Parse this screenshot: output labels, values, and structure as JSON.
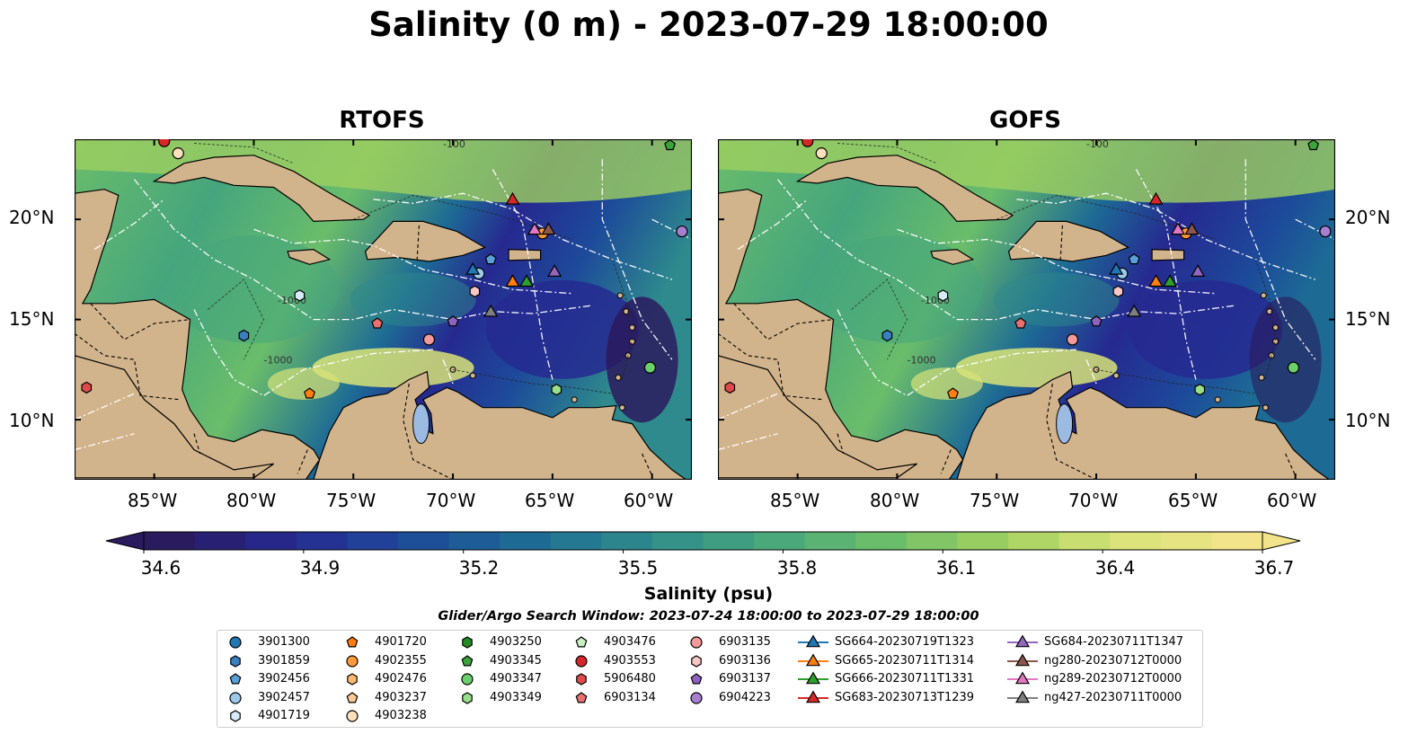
{
  "title": "Salinity (0 m) - 2023-07-29 18:00:00",
  "panels": [
    {
      "title": "RTOFS"
    },
    {
      "title": "GOFS"
    }
  ],
  "lat_ticks": [
    "20°N",
    "15°N",
    "10°N"
  ],
  "lon_ticks": [
    "85°W",
    "80°W",
    "75°W",
    "70°W",
    "65°W",
    "60°W"
  ],
  "isobath_labels": [
    "-100",
    "-1000"
  ],
  "colorbar": {
    "title": "Salinity (psu)",
    "ticks": [
      "34.6",
      "34.9",
      "35.2",
      "35.5",
      "35.8",
      "36.1",
      "36.4",
      "36.7"
    ],
    "min": 34.6,
    "max": 36.7,
    "colormap": [
      "#2a1a5e",
      "#262990",
      "#1d4a9a",
      "#1d6a95",
      "#2e8a8c",
      "#46a57e",
      "#6abd6a",
      "#9fd060",
      "#d8e378",
      "#f1e48a"
    ]
  },
  "search_window": "Glider/Argo Search Window: 2023-07-24 18:00:00 to 2023-07-29 18:00:00",
  "legend": {
    "columns": [
      [
        {
          "label": "3901300",
          "marker": "circle",
          "color": "#1f77b4"
        },
        {
          "label": "3901859",
          "marker": "hexagon",
          "color": "#3a7fbf"
        },
        {
          "label": "3902456",
          "marker": "pentagon",
          "color": "#5aa0d8"
        },
        {
          "label": "3902457",
          "marker": "circle",
          "color": "#9cc8ea"
        },
        {
          "label": "4901719",
          "marker": "hexagon",
          "color": "#d6eaf8"
        }
      ],
      [
        {
          "label": "4901720",
          "marker": "pentagon",
          "color": "#ff7f0e"
        },
        {
          "label": "4902355",
          "marker": "circle",
          "color": "#ff9a3a"
        },
        {
          "label": "4902476",
          "marker": "hexagon",
          "color": "#ffb870"
        },
        {
          "label": "4903237",
          "marker": "pentagon",
          "color": "#ffc997"
        },
        {
          "label": "4903238",
          "marker": "circle",
          "color": "#ffe0bd"
        }
      ],
      [
        {
          "label": "4903250",
          "marker": "hexagon",
          "color": "#238b23"
        },
        {
          "label": "4903345",
          "marker": "pentagon",
          "color": "#3ca23c"
        },
        {
          "label": "4903347",
          "marker": "circle",
          "color": "#6bd06b"
        },
        {
          "label": "4903349",
          "marker": "hexagon",
          "color": "#98df8a"
        },
        {
          "label": "",
          "marker": "",
          "color": ""
        }
      ],
      [
        {
          "label": "4903476",
          "marker": "pentagon",
          "color": "#c7f0c0"
        },
        {
          "label": "4903553",
          "marker": "circle",
          "color": "#d62728"
        },
        {
          "label": "5906480",
          "marker": "hexagon",
          "color": "#e04a4a"
        },
        {
          "label": "6903134",
          "marker": "pentagon",
          "color": "#ec6f6f"
        },
        {
          "label": "",
          "marker": "",
          "color": ""
        }
      ],
      [
        {
          "label": "6903135",
          "marker": "circle",
          "color": "#f29a9a"
        },
        {
          "label": "6903136",
          "marker": "hexagon",
          "color": "#f9c6c6"
        },
        {
          "label": "6903137",
          "marker": "pentagon",
          "color": "#8e63c0"
        },
        {
          "label": "6904223",
          "marker": "circle",
          "color": "#a77fd1"
        },
        {
          "label": "",
          "marker": "",
          "color": ""
        }
      ],
      [
        {
          "label": "SG664-20230719T1323",
          "marker": "triangle",
          "color": "#1f77b4"
        },
        {
          "label": "SG665-20230711T1314",
          "marker": "triangle",
          "color": "#ff7f0e"
        },
        {
          "label": "SG666-20230711T1331",
          "marker": "triangle",
          "color": "#2ca02c"
        },
        {
          "label": "SG683-20230713T1239",
          "marker": "triangle",
          "color": "#d62728"
        },
        {
          "label": "",
          "marker": "",
          "color": ""
        }
      ],
      [
        {
          "label": "SG684-20230711T1347",
          "marker": "triangle",
          "color": "#9467bd"
        },
        {
          "label": "ng280-20230712T0000",
          "marker": "triangle",
          "color": "#8c564b"
        },
        {
          "label": "ng289-20230712T0000",
          "marker": "triangle",
          "color": "#e377c2"
        },
        {
          "label": "ng427-20230711T0000",
          "marker": "triangle",
          "color": "#7f7f7f"
        },
        {
          "label": "",
          "marker": "",
          "color": ""
        }
      ]
    ]
  },
  "map_markers": [
    {
      "name": "4901720",
      "lon": -77.2,
      "lat": 11.3,
      "marker": "pentagon",
      "color": "#ff7f0e"
    },
    {
      "name": "3901859",
      "lon": -80.5,
      "lat": 14.2,
      "marker": "hexagon",
      "color": "#3a7fbf"
    },
    {
      "name": "4901719",
      "lon": -77.7,
      "lat": 16.2,
      "marker": "hexagon",
      "color": "#d6eaf8"
    },
    {
      "name": "6903134",
      "lon": -73.8,
      "lat": 14.8,
      "marker": "pentagon",
      "color": "#ec6f6f"
    },
    {
      "name": "6903135",
      "lon": -71.2,
      "lat": 14.0,
      "marker": "circle",
      "color": "#f29a9a"
    },
    {
      "name": "6903137",
      "lon": -70.0,
      "lat": 14.9,
      "marker": "pentagon",
      "color": "#8e63c0"
    },
    {
      "name": "6903136",
      "lon": -68.9,
      "lat": 16.4,
      "marker": "hexagon",
      "color": "#f9c6c6"
    },
    {
      "name": "3902457",
      "lon": -68.7,
      "lat": 17.3,
      "marker": "circle",
      "color": "#9cc8ea"
    },
    {
      "name": "3902456",
      "lon": -68.1,
      "lat": 18.0,
      "marker": "pentagon",
      "color": "#5aa0d8"
    },
    {
      "name": "4903349",
      "lon": -64.8,
      "lat": 11.5,
      "marker": "hexagon",
      "color": "#98df8a"
    },
    {
      "name": "4903347",
      "lon": -60.1,
      "lat": 12.6,
      "marker": "circle",
      "color": "#6bd06b"
    },
    {
      "name": "5906480",
      "lon": -88.4,
      "lat": 11.6,
      "marker": "hexagon",
      "color": "#e04a4a"
    },
    {
      "name": "6904223",
      "lon": -58.5,
      "lat": 19.4,
      "marker": "circle",
      "color": "#a77fd1"
    },
    {
      "name": "4903238",
      "lon": -83.8,
      "lat": 23.3,
      "marker": "circle",
      "color": "#ffe0bd"
    },
    {
      "name": "4903553",
      "lon": -84.5,
      "lat": 23.9,
      "marker": "circle",
      "color": "#d62728"
    },
    {
      "name": "4903345",
      "lon": -59.1,
      "lat": 23.7,
      "marker": "pentagon",
      "color": "#3ca23c"
    },
    {
      "name": "4902355",
      "lon": -65.5,
      "lat": 19.3,
      "marker": "circle",
      "color": "#ff9a3a"
    },
    {
      "name": "SG664-20230719T1323",
      "lon": -69.0,
      "lat": 17.5,
      "marker": "triangle",
      "color": "#1f77b4"
    },
    {
      "name": "SG665-20230711T1314",
      "lon": -67.0,
      "lat": 16.9,
      "marker": "triangle",
      "color": "#ff7f0e"
    },
    {
      "name": "SG666-20230711T1331",
      "lon": -66.3,
      "lat": 16.9,
      "marker": "triangle",
      "color": "#2ca02c"
    },
    {
      "name": "SG683-20230713T1239",
      "lon": -67.0,
      "lat": 21.0,
      "marker": "triangle",
      "color": "#d62728"
    },
    {
      "name": "SG684-20230711T1347",
      "lon": -64.9,
      "lat": 17.4,
      "marker": "triangle",
      "color": "#9467bd"
    },
    {
      "name": "ng280-20230712T0000",
      "lon": -65.2,
      "lat": 19.5,
      "marker": "triangle",
      "color": "#8c564b"
    },
    {
      "name": "ng289-20230712T0000",
      "lon": -65.9,
      "lat": 19.5,
      "marker": "triangle",
      "color": "#e377c2"
    },
    {
      "name": "ng427-20230711T0000",
      "lon": -68.1,
      "lat": 15.4,
      "marker": "triangle",
      "color": "#7f7f7f"
    }
  ],
  "colors": {
    "land": "#d2b48c",
    "lake": "#9bbbe3",
    "eez_lines": "#ffffff"
  }
}
